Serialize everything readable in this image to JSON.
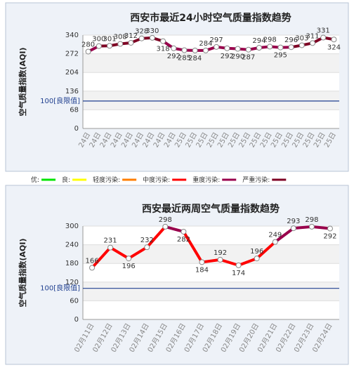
{
  "chart_data": [
    {
      "type": "line",
      "title": "西安市最近24小时空气质量指数趋势",
      "y_label": "空气质量指数(AQI)",
      "categories": [
        "24日",
        "24日",
        "24日",
        "24日",
        "24日",
        "24日",
        "24日",
        "24日",
        "24日",
        "25日",
        "25日",
        "25日",
        "25日",
        "25日",
        "25日",
        "25日",
        "25日",
        "25日",
        "25日",
        "25日",
        "25日",
        "25日",
        "25日",
        "25日"
      ],
      "series": [
        {
          "name": "AQI",
          "values": [
            280,
            300,
            301,
            308,
            312,
            328,
            330,
            318,
            292,
            285,
            284,
            284,
            297,
            292,
            290,
            287,
            294,
            298,
            295,
            296,
            303,
            311,
            331,
            324
          ],
          "colors": [
            "#99004c",
            "#99004c",
            "#7e0023",
            "#7e0023",
            "#7e0023",
            "#7e0023",
            "#7e0023",
            "#7e0023",
            "#99004c",
            "#99004c",
            "#99004c",
            "#99004c",
            "#99004c",
            "#99004c",
            "#99004c",
            "#99004c",
            "#99004c",
            "#99004c",
            "#99004c",
            "#99004c",
            "#7e0023",
            "#7e0023",
            "#7e0023",
            "#7e0023"
          ]
        }
      ],
      "ylim": [
        0,
        340
      ],
      "yticks": [
        0,
        68,
        136,
        204,
        272,
        340
      ],
      "grid": true,
      "ref_line": {
        "value": 100,
        "label": "100[良限值]"
      }
    },
    {
      "type": "line",
      "title": "西安最近两周空气质量指数趋势",
      "y_label": "空气质量指数(AQI)",
      "categories": [
        "02月11日",
        "02月12日",
        "02月13日",
        "02月14日",
        "02月15日",
        "02月16日",
        "02月17日",
        "02月18日",
        "02月19日",
        "02月20日",
        "02月21日",
        "02月22日",
        "02月23日",
        "02月24日"
      ],
      "series": [
        {
          "name": "AQI",
          "values": [
            166,
            231,
            196,
            232,
            298,
            282,
            184,
            192,
            174,
            196,
            249,
            293,
            298,
            292
          ],
          "colors": [
            "#ff0000",
            "#ff0000",
            "#ff0000",
            "#ff0000",
            "#ff0000",
            "#99004c",
            "#ff0000",
            "#ff0000",
            "#ff0000",
            "#ff0000",
            "#ff0000",
            "#99004c",
            "#99004c",
            "#99004c"
          ]
        }
      ],
      "ylim": [
        0,
        300
      ],
      "yticks": [
        0,
        60,
        120,
        180,
        240,
        300
      ],
      "grid": true,
      "ref_line": {
        "value": 100,
        "label": "100[良限值]"
      }
    }
  ],
  "legend": [
    {
      "label": "优:",
      "color": "#00e400"
    },
    {
      "label": "良:",
      "color": "#ffff00"
    },
    {
      "label": "轻度污染:",
      "color": "#ff7e00"
    },
    {
      "label": "中度污染:",
      "color": "#ff0000"
    },
    {
      "label": "重度污染:",
      "color": "#99004c"
    },
    {
      "label": "严重污染:",
      "color": "#7e0023"
    }
  ]
}
